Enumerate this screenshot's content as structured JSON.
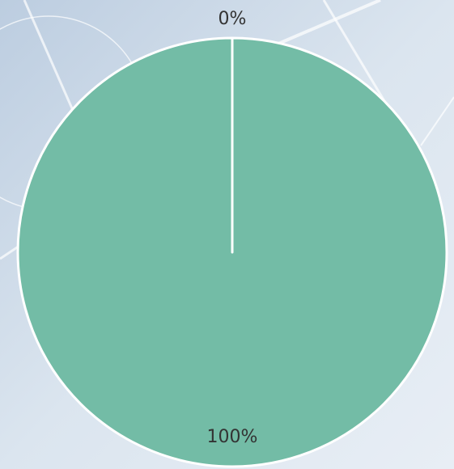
{
  "chart_data": {
    "type": "pie",
    "values": [
      0,
      100
    ],
    "value_labels": [
      "0%",
      "100%"
    ],
    "color": "#73bca6"
  }
}
